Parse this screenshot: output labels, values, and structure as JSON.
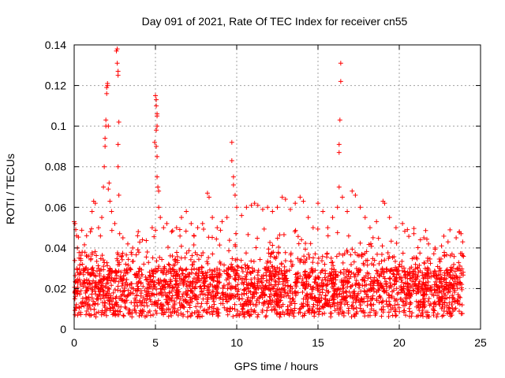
{
  "chart_data": {
    "type": "scatter",
    "title": "Day 091 of 2021, Rate Of TEC Index for receiver cn55",
    "xlabel": "GPS time / hours",
    "ylabel": "ROTI / TECUs",
    "xlim": [
      0,
      25
    ],
    "ylim": [
      0,
      0.14
    ],
    "xticks": [
      0,
      5,
      10,
      15,
      20,
      25
    ],
    "xtick_labels": [
      "0",
      "5",
      "10",
      "15",
      "20",
      "25"
    ],
    "yticks": [
      0,
      0.02,
      0.04,
      0.06,
      0.08,
      0.1,
      0.12,
      0.14
    ],
    "ytick_labels": [
      "0",
      "0.02",
      "0.04",
      "0.06",
      "0.08",
      "0.1",
      "0.12",
      "0.14"
    ],
    "grid": true,
    "marker": "+",
    "marker_color": "#ff0000",
    "series": [
      {
        "name": "ROTI",
        "points": [
          [
            0.0,
            0.053
          ],
          [
            0.05,
            0.052
          ],
          [
            0.1,
            0.049
          ],
          [
            0.15,
            0.046
          ],
          [
            0.2,
            0.04
          ],
          [
            0.3,
            0.035
          ],
          [
            0.5,
            0.032
          ],
          [
            0.7,
            0.03
          ],
          [
            0.9,
            0.036
          ],
          [
            1.0,
            0.048
          ],
          [
            1.1,
            0.058
          ],
          [
            1.2,
            0.063
          ],
          [
            1.3,
            0.062
          ],
          [
            1.5,
            0.05
          ],
          [
            1.7,
            0.055
          ],
          [
            1.8,
            0.07
          ],
          [
            1.85,
            0.08
          ],
          [
            1.9,
            0.09
          ],
          [
            1.9,
            0.094
          ],
          [
            1.95,
            0.1
          ],
          [
            1.95,
            0.103
          ],
          [
            2.0,
            0.116
          ],
          [
            2.0,
            0.119
          ],
          [
            2.05,
            0.121
          ],
          [
            2.05,
            0.12
          ],
          [
            2.1,
            0.1
          ],
          [
            2.1,
            0.069
          ],
          [
            2.15,
            0.072
          ],
          [
            2.2,
            0.063
          ],
          [
            2.3,
            0.058
          ],
          [
            2.5,
            0.052
          ],
          [
            2.6,
            0.137
          ],
          [
            2.65,
            0.138
          ],
          [
            2.65,
            0.131
          ],
          [
            2.7,
            0.127
          ],
          [
            2.7,
            0.125
          ],
          [
            2.75,
            0.102
          ],
          [
            2.7,
            0.091
          ],
          [
            2.7,
            0.08
          ],
          [
            2.75,
            0.066
          ],
          [
            2.8,
            0.047
          ],
          [
            3.0,
            0.045
          ],
          [
            3.3,
            0.042
          ],
          [
            3.6,
            0.04
          ],
          [
            3.9,
            0.046
          ],
          [
            4.2,
            0.044
          ],
          [
            4.5,
            0.038
          ],
          [
            4.8,
            0.05
          ],
          [
            4.95,
            0.092
          ],
          [
            5.0,
            0.115
          ],
          [
            5.05,
            0.113
          ],
          [
            5.05,
            0.11
          ],
          [
            5.1,
            0.106
          ],
          [
            5.1,
            0.105
          ],
          [
            5.1,
            0.1
          ],
          [
            5.05,
            0.098
          ],
          [
            5.05,
            0.09
          ],
          [
            5.1,
            0.085
          ],
          [
            5.1,
            0.075
          ],
          [
            5.15,
            0.07
          ],
          [
            5.2,
            0.068
          ],
          [
            5.2,
            0.06
          ],
          [
            5.3,
            0.055
          ],
          [
            5.5,
            0.05
          ],
          [
            5.7,
            0.052
          ],
          [
            6.0,
            0.048
          ],
          [
            6.3,
            0.05
          ],
          [
            6.6,
            0.055
          ],
          [
            6.9,
            0.058
          ],
          [
            7.2,
            0.052
          ],
          [
            7.6,
            0.05
          ],
          [
            7.9,
            0.052
          ],
          [
            8.2,
            0.067
          ],
          [
            8.3,
            0.065
          ],
          [
            8.5,
            0.055
          ],
          [
            8.8,
            0.05
          ],
          [
            9.1,
            0.053
          ],
          [
            9.4,
            0.055
          ],
          [
            9.7,
            0.092
          ],
          [
            9.7,
            0.083
          ],
          [
            9.8,
            0.075
          ],
          [
            9.8,
            0.071
          ],
          [
            9.9,
            0.066
          ],
          [
            10.0,
            0.06
          ],
          [
            10.3,
            0.056
          ],
          [
            10.6,
            0.06
          ],
          [
            10.9,
            0.061
          ],
          [
            11.1,
            0.062
          ],
          [
            11.3,
            0.061
          ],
          [
            11.6,
            0.059
          ],
          [
            11.9,
            0.06
          ],
          [
            12.2,
            0.058
          ],
          [
            12.5,
            0.06
          ],
          [
            12.8,
            0.065
          ],
          [
            13.0,
            0.064
          ],
          [
            13.3,
            0.059
          ],
          [
            13.6,
            0.062
          ],
          [
            13.9,
            0.065
          ],
          [
            14.1,
            0.063
          ],
          [
            14.4,
            0.055
          ],
          [
            14.7,
            0.05
          ],
          [
            15.0,
            0.062
          ],
          [
            15.3,
            0.058
          ],
          [
            15.6,
            0.05
          ],
          [
            15.9,
            0.055
          ],
          [
            16.2,
            0.06
          ],
          [
            16.3,
            0.07
          ],
          [
            16.3,
            0.087
          ],
          [
            16.3,
            0.091
          ],
          [
            16.35,
            0.103
          ],
          [
            16.4,
            0.122
          ],
          [
            16.4,
            0.131
          ],
          [
            16.5,
            0.065
          ],
          [
            16.8,
            0.058
          ],
          [
            17.1,
            0.068
          ],
          [
            17.3,
            0.066
          ],
          [
            17.6,
            0.06
          ],
          [
            17.9,
            0.055
          ],
          [
            18.2,
            0.05
          ],
          [
            18.6,
            0.053
          ],
          [
            19.0,
            0.063
          ],
          [
            19.1,
            0.062
          ],
          [
            19.4,
            0.055
          ],
          [
            19.8,
            0.05
          ],
          [
            20.2,
            0.052
          ],
          [
            20.5,
            0.049
          ],
          [
            20.9,
            0.047
          ],
          [
            21.3,
            0.044
          ],
          [
            21.8,
            0.042
          ],
          [
            22.2,
            0.04
          ],
          [
            22.6,
            0.041
          ],
          [
            23.0,
            0.043
          ],
          [
            23.5,
            0.045
          ],
          [
            23.7,
            0.048
          ],
          [
            23.8,
            0.047
          ],
          [
            23.9,
            0.043
          ]
        ],
        "dense_band": [
          {
            "x": [
              0,
              24
            ],
            "y_range": [
              0.005,
              0.03
            ]
          },
          {
            "x": [
              0,
              24
            ],
            "y_range": [
              0.005,
              0.045
            ]
          }
        ]
      }
    ]
  }
}
